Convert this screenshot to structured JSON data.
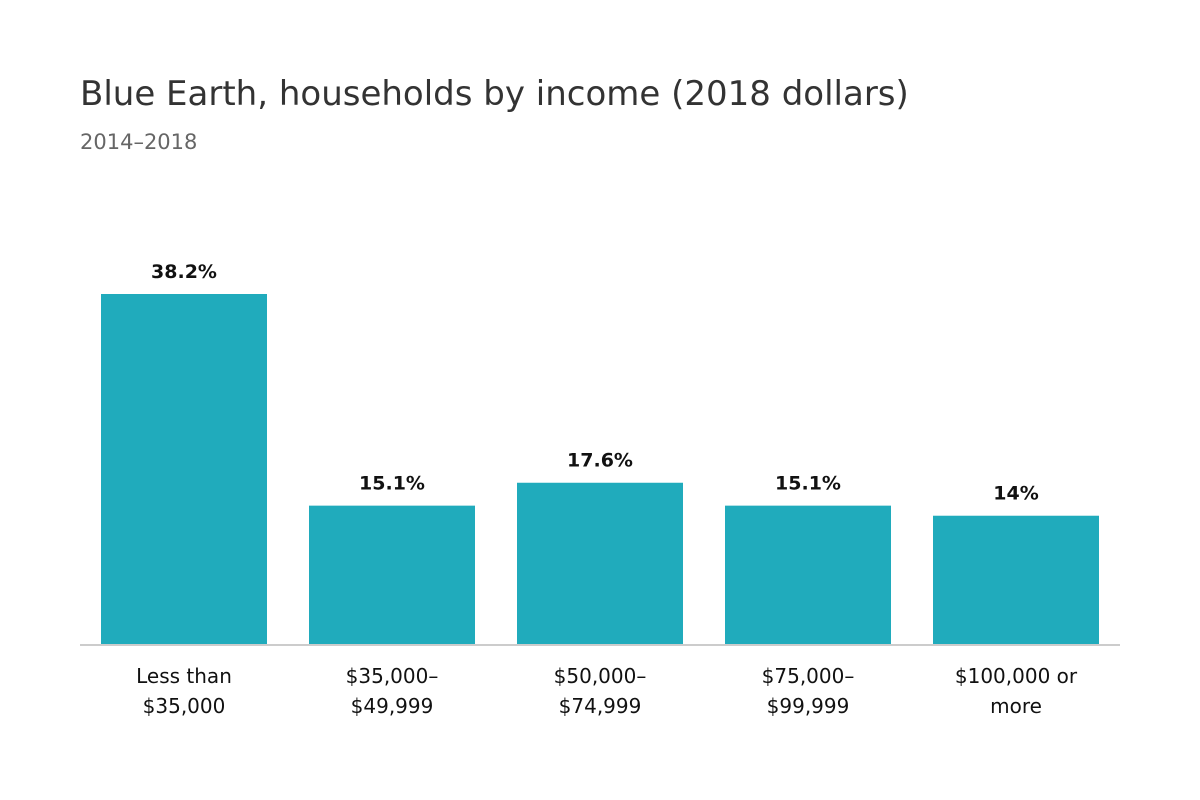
{
  "chart_data": {
    "type": "bar",
    "title": "Blue Earth, households by income (2018 dollars)",
    "subtitle": "2014–2018",
    "categories": [
      [
        "Less than",
        "$35,000"
      ],
      [
        "$35,000–",
        "$49,999"
      ],
      [
        "$50,000–",
        "$74,999"
      ],
      [
        "$75,000–",
        "$99,999"
      ],
      [
        "$100,000 or",
        "more"
      ]
    ],
    "values": [
      38.2,
      15.1,
      17.6,
      15.1,
      14
    ],
    "data_labels": [
      "38.2%",
      "15.1%",
      "17.6%",
      "15.1%",
      "14%"
    ],
    "xlabel": "",
    "ylabel": "",
    "ylim": [
      0,
      40
    ],
    "grid": false,
    "legend": "none",
    "bar_color": "#20abbc",
    "baseline_color": "#cccccc"
  }
}
